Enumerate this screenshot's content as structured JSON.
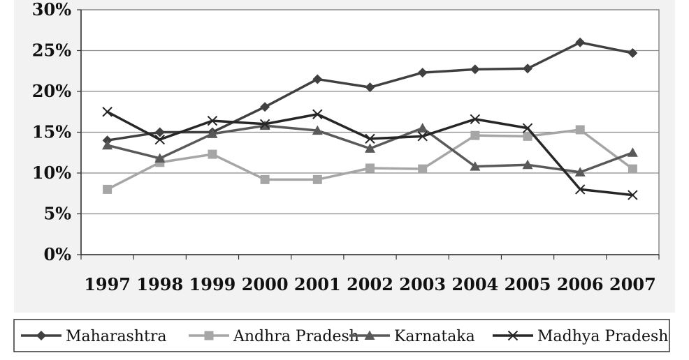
{
  "chart_data": {
    "type": "line",
    "title": "",
    "xlabel": "",
    "ylabel": "",
    "categories": [
      "1997",
      "1998",
      "1999",
      "2000",
      "2001",
      "2002",
      "2003",
      "2004",
      "2005",
      "2006",
      "2007"
    ],
    "ylim": [
      0,
      30
    ],
    "y_ticks": [
      "0%",
      "5%",
      "10%",
      "15%",
      "20%",
      "25%",
      "30%"
    ],
    "y_tick_values": [
      0,
      5,
      10,
      15,
      20,
      25,
      30
    ],
    "grid": "horizontal",
    "legend_position": "bottom",
    "series": [
      {
        "name": "Maharashtra",
        "marker": "diamond",
        "color": "#404040",
        "values": [
          14.0,
          15.0,
          15.0,
          18.1,
          21.5,
          20.5,
          22.3,
          22.7,
          22.8,
          26.0,
          24.7
        ]
      },
      {
        "name": "Andhra Pradesh",
        "marker": "square",
        "color": "#a6a6a6",
        "values": [
          8.0,
          11.3,
          12.3,
          9.2,
          9.2,
          10.6,
          10.5,
          14.6,
          14.5,
          15.3,
          10.5
        ]
      },
      {
        "name": "Karnataka",
        "marker": "triangle",
        "color": "#595959",
        "values": [
          13.4,
          11.8,
          14.8,
          15.8,
          15.2,
          13.0,
          15.5,
          10.8,
          11.0,
          10.1,
          12.5
        ]
      },
      {
        "name": "Madhya Pradesh",
        "marker": "x",
        "color": "#262626",
        "values": [
          17.5,
          14.1,
          16.4,
          16.0,
          17.2,
          14.2,
          14.5,
          16.6,
          15.5,
          8.0,
          7.3
        ]
      }
    ]
  }
}
